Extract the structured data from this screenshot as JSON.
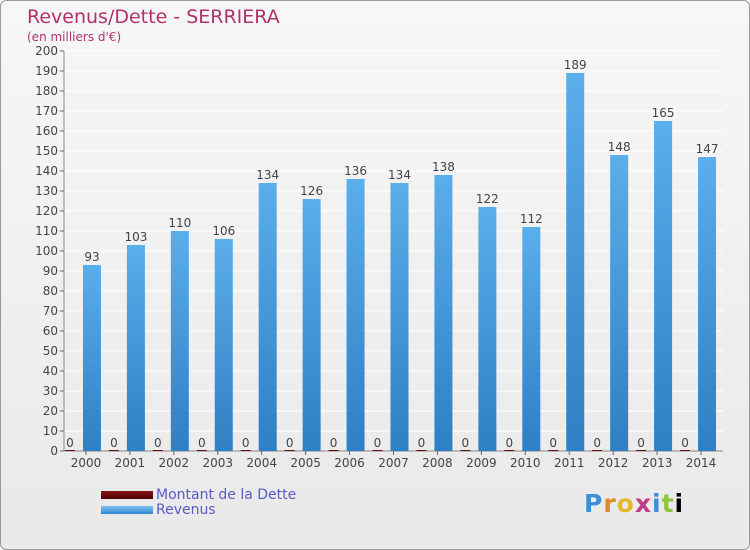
{
  "chart_title": "Revenus/Dette - SERRIERA",
  "chart_subtitle": "(en milliers d'€)",
  "brand_logo": "Proxiti",
  "colors": {
    "title": "#b3306a",
    "revenus_top": "#7fc3f2",
    "revenus_bottom": "#2f87cf",
    "dette": "#6b0a0a",
    "legend_text": "#5a5ac8"
  },
  "chart_data": {
    "type": "bar",
    "title": "Revenus/Dette - SERRIERA",
    "subtitle": "(en milliers d'€)",
    "categories": [
      "2000",
      "2001",
      "2002",
      "2003",
      "2004",
      "2005",
      "2006",
      "2007",
      "2008",
      "2009",
      "2010",
      "2011",
      "2012",
      "2013",
      "2014"
    ],
    "series": [
      {
        "name": "Montant de la Dette",
        "values": [
          0,
          0,
          0,
          0,
          0,
          0,
          0,
          0,
          0,
          0,
          0,
          0,
          0,
          0,
          0
        ]
      },
      {
        "name": "Revenus",
        "values": [
          93,
          103,
          110,
          106,
          134,
          126,
          136,
          134,
          138,
          122,
          112,
          189,
          148,
          165,
          147
        ]
      }
    ],
    "ylim": [
      0,
      200
    ],
    "yticks": [
      0,
      10,
      20,
      30,
      40,
      50,
      60,
      70,
      80,
      90,
      100,
      110,
      120,
      130,
      140,
      150,
      160,
      170,
      180,
      190,
      200
    ],
    "grid": true,
    "legend_position": "bottom-left"
  }
}
